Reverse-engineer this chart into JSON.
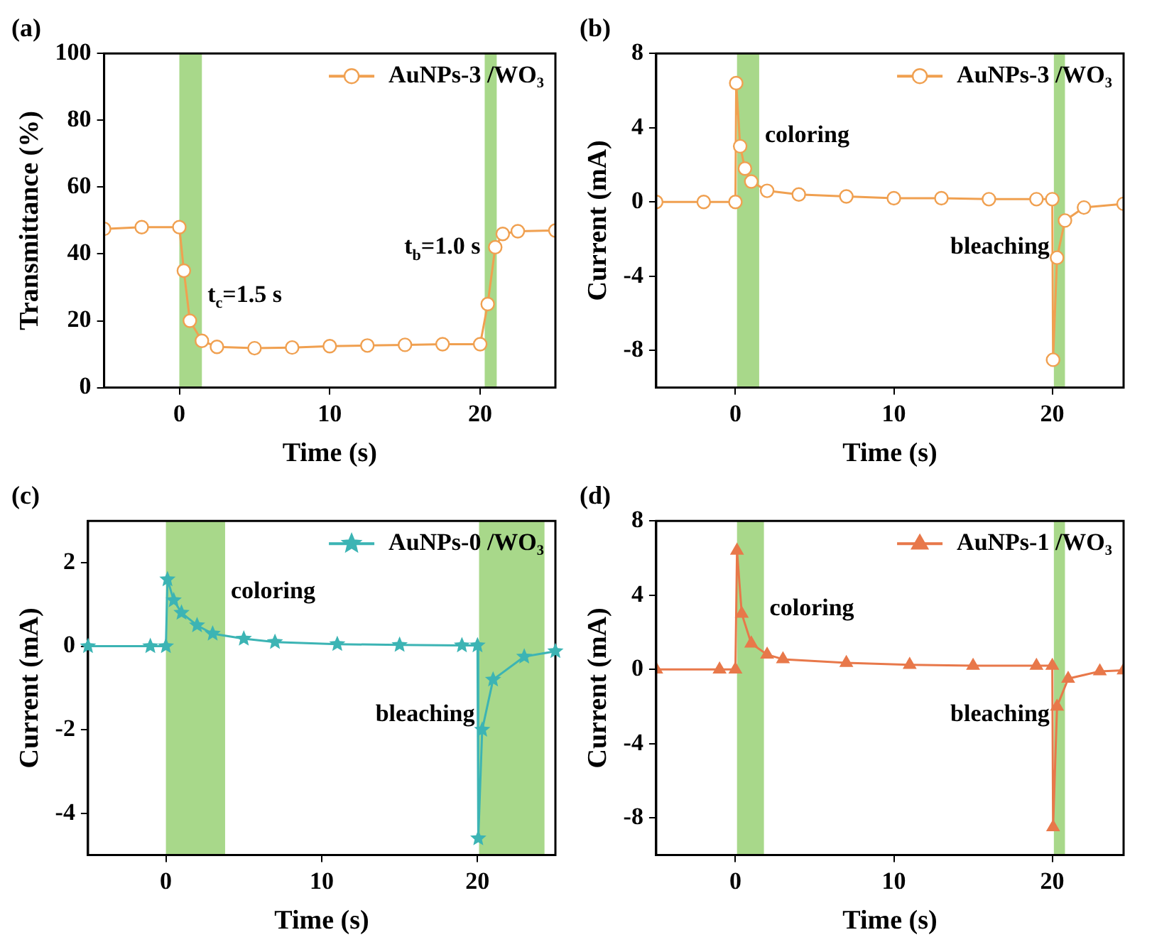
{
  "chart_data": [
    {
      "type": "line",
      "title": "(a)",
      "xlabel": "Time (s)",
      "ylabel": "Transmittance (%)",
      "xlim": [
        -5,
        25
      ],
      "xticks": [
        0,
        10,
        20
      ],
      "ylim": [
        0,
        100
      ],
      "yticks": [
        0,
        20,
        40,
        60,
        80,
        100
      ],
      "legend": "top right",
      "marker": "circle",
      "grid": false,
      "series": [
        {
          "name": "AuNPs-3 /WO₃",
          "color": "#f0a050",
          "x": [
            -5,
            -2.5,
            0,
            0.3,
            0.7,
            1.5,
            2.5,
            5,
            7.5,
            10,
            12.5,
            15,
            17.5,
            20,
            20.5,
            21,
            21.5,
            22.5,
            25
          ],
          "values": [
            47.5,
            48,
            48,
            35,
            20,
            14,
            12.2,
            11.8,
            12,
            12.4,
            12.6,
            12.8,
            13,
            13,
            25,
            42,
            46,
            46.8,
            47
          ]
        }
      ],
      "bands": [
        {
          "axis": "x",
          "from": 0,
          "to": 1.5,
          "color": "#a8d88a"
        },
        {
          "axis": "x",
          "from": 20.3,
          "to": 21.1,
          "color": "#a8d88a"
        }
      ],
      "annotations": [
        "t$_{c}$=1.5 s",
        "t$_{b}$=1.0 s"
      ]
    },
    {
      "type": "line",
      "title": "(b)",
      "xlabel": "Time (s)",
      "ylabel": "Current (mA)",
      "xlim": [
        -5,
        24.5
      ],
      "xticks": [
        0,
        10,
        20
      ],
      "ylim": [
        -10,
        8
      ],
      "yticks": [
        -8,
        -4,
        0,
        4,
        8
      ],
      "legend": "top right",
      "marker": "circle",
      "grid": false,
      "series": [
        {
          "name": "AuNPs-3 /WO₃",
          "color": "#f0a050",
          "x": [
            -5,
            -2,
            0,
            0.05,
            0.3,
            0.6,
            1,
            2,
            4,
            7,
            10,
            13,
            16,
            19,
            20,
            20.05,
            20.3,
            20.8,
            22,
            24.5
          ],
          "values": [
            0,
            0,
            0,
            6.4,
            3,
            1.8,
            1.1,
            0.6,
            0.4,
            0.3,
            0.2,
            0.2,
            0.15,
            0.15,
            0.15,
            -8.5,
            -3,
            -1,
            -0.3,
            -0.1
          ]
        }
      ],
      "bands": [
        {
          "axis": "x",
          "from": 0.1,
          "to": 1.5,
          "color": "#a8d88a"
        },
        {
          "axis": "x",
          "from": 20.1,
          "to": 20.8,
          "color": "#a8d88a"
        }
      ],
      "annotations": [
        "coloring",
        "bleaching"
      ]
    },
    {
      "type": "line",
      "title": "(c)",
      "xlabel": "Time (s)",
      "ylabel": "Current (mA)",
      "xlim": [
        -5,
        25
      ],
      "xticks": [
        0,
        10,
        20
      ],
      "ylim": [
        -5,
        3
      ],
      "yticks": [
        -4,
        -2,
        0,
        2
      ],
      "legend": "top right",
      "marker": "star",
      "grid": false,
      "series": [
        {
          "name": "AuNPs-0 /WO₃",
          "color": "#3cb4b4",
          "x": [
            -5,
            -1,
            0,
            0.1,
            0.5,
            1,
            2,
            3,
            5,
            7,
            11,
            15,
            19,
            20,
            20.05,
            20.3,
            21,
            23,
            25
          ],
          "values": [
            0,
            0,
            0,
            1.6,
            1.1,
            0.8,
            0.5,
            0.3,
            0.18,
            0.1,
            0.05,
            0.03,
            0.02,
            0.02,
            -4.6,
            -2,
            -0.8,
            -0.25,
            -0.12
          ]
        }
      ],
      "bands": [
        {
          "axis": "x",
          "from": 0,
          "to": 3.8,
          "color": "#a8d88a"
        },
        {
          "axis": "x",
          "from": 20.1,
          "to": 24.3,
          "color": "#a8d88a"
        }
      ],
      "annotations": [
        "coloring",
        "bleaching"
      ]
    },
    {
      "type": "line",
      "title": "(d)",
      "xlabel": "Time (s)",
      "ylabel": "Current (mA)",
      "xlim": [
        -5,
        24.5
      ],
      "xticks": [
        0,
        10,
        20
      ],
      "ylim": [
        -10,
        8
      ],
      "yticks": [
        -8,
        -4,
        0,
        4,
        8
      ],
      "legend": "top right",
      "marker": "triangle",
      "grid": false,
      "series": [
        {
          "name": "AuNPs-1 /WO₃",
          "color": "#e8784a",
          "x": [
            -5,
            -1,
            0,
            0.1,
            0.4,
            1,
            2,
            3,
            7,
            11,
            15,
            19,
            20,
            20.05,
            20.3,
            21,
            23,
            24.5
          ],
          "values": [
            0,
            0,
            0,
            6.4,
            3,
            1.4,
            0.8,
            0.55,
            0.35,
            0.25,
            0.2,
            0.2,
            0.2,
            -8.5,
            -2,
            -0.5,
            -0.1,
            -0.05
          ]
        }
      ],
      "bands": [
        {
          "axis": "x",
          "from": 0.1,
          "to": 1.8,
          "color": "#a8d88a"
        },
        {
          "axis": "x",
          "from": 20.1,
          "to": 20.8,
          "color": "#a8d88a"
        }
      ],
      "annotations": [
        "coloring",
        "bleaching"
      ]
    }
  ]
}
